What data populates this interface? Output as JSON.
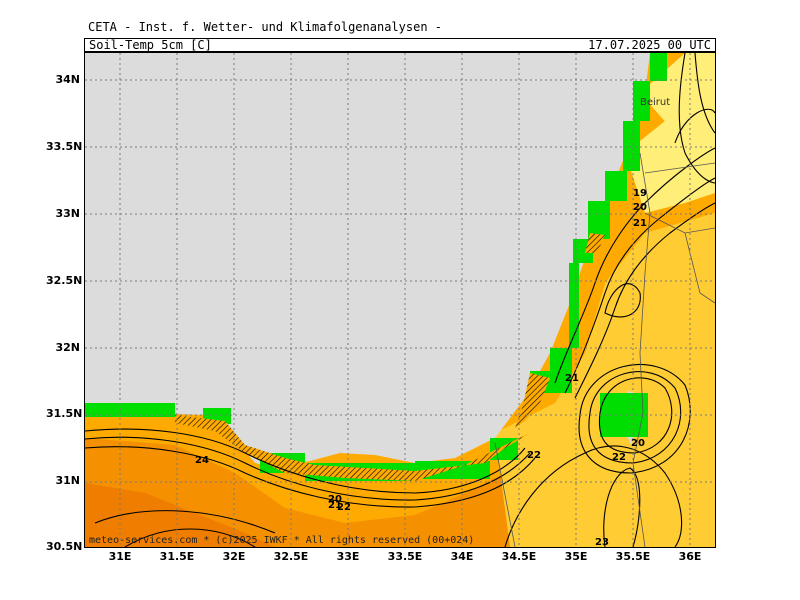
{
  "header": {
    "title": "CETA - Inst. f. Wetter- und Klimafolgenanalysen -",
    "subtitle": "Soil-Temp 5cm [C]",
    "timestamp": "17.07.2025 00 UTC"
  },
  "footer": {
    "credit": "meteo-services.com * (c)2025 IWKF * All rights reserved (00+024)"
  },
  "axes": {
    "latitude_labels": [
      "34N",
      "33.5N",
      "33N",
      "32.5N",
      "32N",
      "31.5N",
      "31N",
      "30.5N"
    ],
    "longitude_labels": [
      "31E",
      "31.5E",
      "32E",
      "32.5E",
      "33E",
      "33.5E",
      "34E",
      "34.5E",
      "35E",
      "35.5E",
      "36E"
    ]
  },
  "places": {
    "city": "Beirut"
  },
  "contour_labels": [
    {
      "text": "19"
    },
    {
      "text": "20"
    },
    {
      "text": "21"
    },
    {
      "text": "21"
    },
    {
      "text": "20"
    },
    {
      "text": "22"
    },
    {
      "text": "22"
    },
    {
      "text": "24"
    },
    {
      "text": "20"
    },
    {
      "text": "21"
    },
    {
      "text": "22"
    },
    {
      "text": "23"
    }
  ],
  "legend_colors": {
    "sea": "#dcdcdc",
    "coast_green": "#00dd00",
    "cool_yellow": "#ffee77",
    "mid_yellow": "#ffcc33",
    "warm_orange": "#ffaa00",
    "hot_orange": "#f59000",
    "very_hot": "#ef7d00"
  }
}
